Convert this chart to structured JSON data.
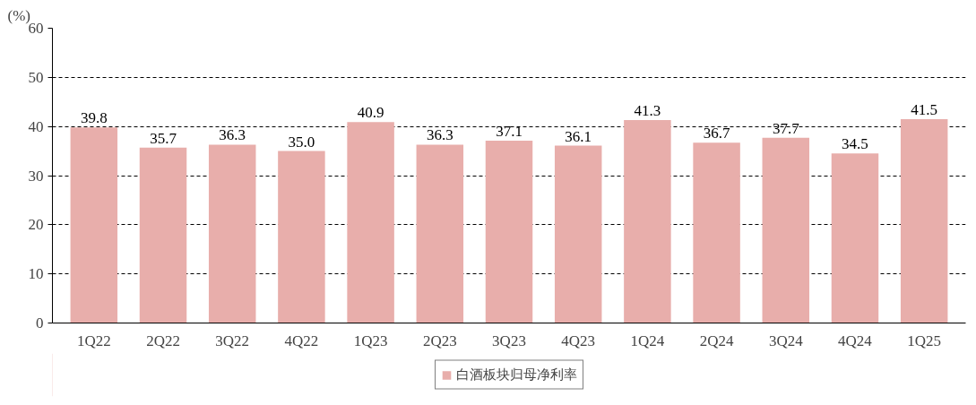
{
  "chart_data": {
    "type": "bar",
    "ylabel": "(%)",
    "categories": [
      "1Q22",
      "2Q22",
      "3Q22",
      "4Q22",
      "1Q23",
      "2Q23",
      "3Q23",
      "4Q23",
      "1Q24",
      "2Q24",
      "3Q24",
      "4Q24",
      "1Q25"
    ],
    "series": [
      {
        "name": "白酒板块归母净利率",
        "color": "#e8aeab",
        "values": [
          39.8,
          35.7,
          36.3,
          35.0,
          40.9,
          36.3,
          37.1,
          36.1,
          41.3,
          36.7,
          37.7,
          34.5,
          41.5
        ],
        "value_labels": [
          "39.8",
          "35.7",
          "36.3",
          "35.0",
          "40.9",
          "36.3",
          "37.1",
          "36.1",
          "41.3",
          "36.7",
          "37.7",
          "34.5",
          "41.5"
        ]
      }
    ],
    "ylim": [
      0,
      60
    ],
    "yticks": [
      0,
      10,
      20,
      30,
      40,
      50,
      60
    ],
    "grid": "y",
    "legend": "bottom"
  }
}
